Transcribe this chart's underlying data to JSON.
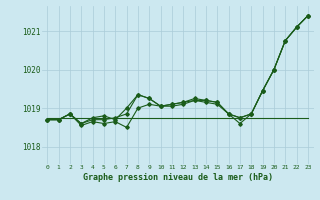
{
  "xlabel": "Graphe pression niveau de la mer (hPa)",
  "background_color": "#cce8f0",
  "grid_color": "#aaccd8",
  "line_color": "#1a5c1a",
  "xlim": [
    -0.5,
    23.5
  ],
  "ylim": [
    1017.55,
    1021.65
  ],
  "yticks": [
    1018,
    1019,
    1020,
    1021
  ],
  "xticks": [
    0,
    1,
    2,
    3,
    4,
    5,
    6,
    7,
    8,
    9,
    10,
    11,
    12,
    13,
    14,
    15,
    16,
    17,
    18,
    19,
    20,
    21,
    22,
    23
  ],
  "s1": [
    1018.7,
    1018.7,
    1018.85,
    1018.6,
    1018.75,
    1018.8,
    1018.7,
    1019.0,
    1019.35,
    1019.25,
    1019.05,
    1019.1,
    1019.15,
    1019.2,
    1019.2,
    1019.15,
    1018.85,
    1018.75,
    1018.85,
    1019.45,
    1020.0,
    1020.75,
    1021.1,
    1021.4
  ],
  "s2": [
    1018.7,
    1018.7,
    1018.85,
    1018.55,
    1018.65,
    1018.6,
    1018.65,
    1018.5,
    1019.0,
    1019.1,
    1019.05,
    1019.05,
    1019.1,
    1019.2,
    1019.15,
    1019.1,
    1018.85,
    1018.6,
    1018.85,
    1019.45,
    1020.0,
    1020.75,
    1021.1,
    1021.4
  ],
  "s3": [
    1018.7,
    1018.7,
    1018.85,
    1018.6,
    1018.7,
    1018.7,
    1018.75,
    1018.85,
    1019.35,
    1019.25,
    1019.05,
    1019.1,
    1019.15,
    1019.25,
    1019.2,
    1019.15,
    1018.85,
    1018.75,
    1018.85,
    1019.45,
    1020.0,
    1020.75,
    1021.1,
    1021.4
  ],
  "s4_flat": [
    1018.75,
    1018.75,
    1018.75,
    1018.75,
    1018.75,
    1018.75,
    1018.75,
    1018.75,
    1018.75,
    1018.75,
    1018.75,
    1018.75,
    1018.75,
    1018.75,
    1018.75,
    1018.75,
    1018.75,
    1018.75,
    1018.75,
    1018.75,
    1018.75,
    1018.75,
    1018.75,
    1018.75
  ]
}
